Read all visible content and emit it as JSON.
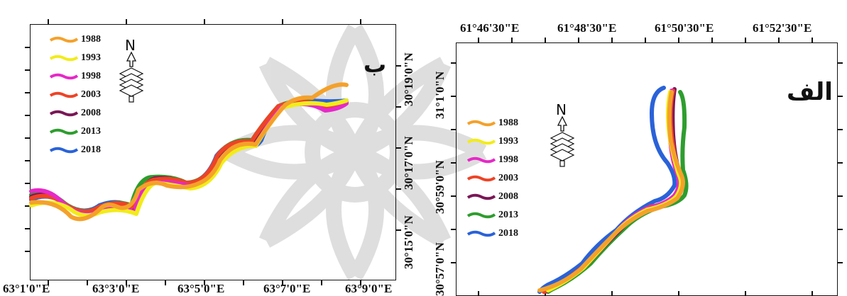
{
  "colors": {
    "1988": "#f4a12b",
    "1993": "#f2ec1a",
    "1998": "#e629c7",
    "2003": "#ee4326",
    "2008": "#7a1756",
    "2013": "#2e9d2e",
    "2018": "#2a62d8",
    "watermark": "#d9d9d9"
  },
  "legend": [
    "1988",
    "1993",
    "1998",
    "2003",
    "2008",
    "2013",
    "2018"
  ],
  "left_panel": {
    "title": "ب",
    "x_ticks": [
      "63°1'0\"E",
      "63°3'0\"E",
      "63°5'0\"E",
      "63°7'0\"E",
      "63°9'0\"E"
    ],
    "y_ticks": [
      "30°15'0\"N",
      "30°17'0\"N",
      "30°19'0\"N"
    ],
    "north_label": "N"
  },
  "right_panel": {
    "title": "الف",
    "x_ticks": [
      "61°46'30\"E",
      "61°48'30\"E",
      "61°50'30\"E",
      "61°52'30\"E"
    ],
    "y_ticks": [
      "30°57'0\"N",
      "30°59'0\"N",
      "31°1'0\"N"
    ],
    "north_label": "N"
  }
}
